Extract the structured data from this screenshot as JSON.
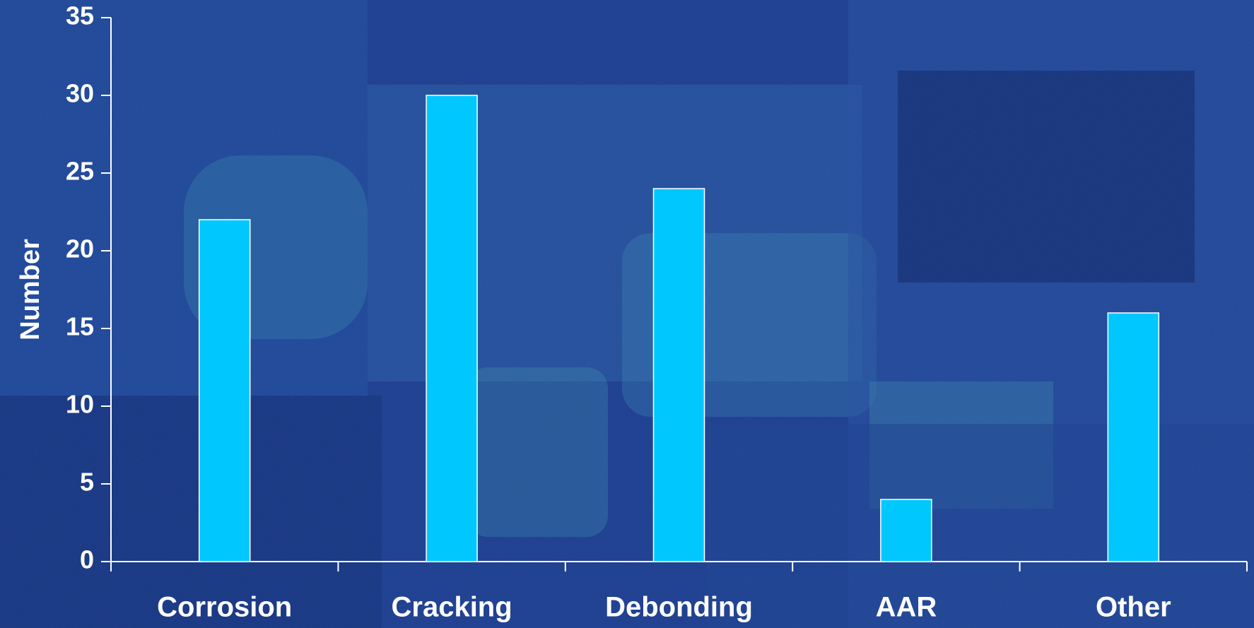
{
  "colors": {
    "background": "#1b3d8f",
    "bar": "#00c8ff",
    "bar_stroke": "#ffffff",
    "axis": "#ffffff"
  },
  "chart_data": {
    "type": "bar",
    "categories": [
      "Corrosion",
      "Cracking",
      "Debonding",
      "AAR",
      "Other"
    ],
    "values": [
      22,
      30,
      24,
      4,
      16
    ],
    "xlabel": "",
    "ylabel": "Number",
    "ylim": [
      0,
      35
    ],
    "yticks": [
      "0",
      "5",
      "10",
      "15",
      "20",
      "25",
      "30",
      "35"
    ],
    "grid": false,
    "legend": "none"
  }
}
